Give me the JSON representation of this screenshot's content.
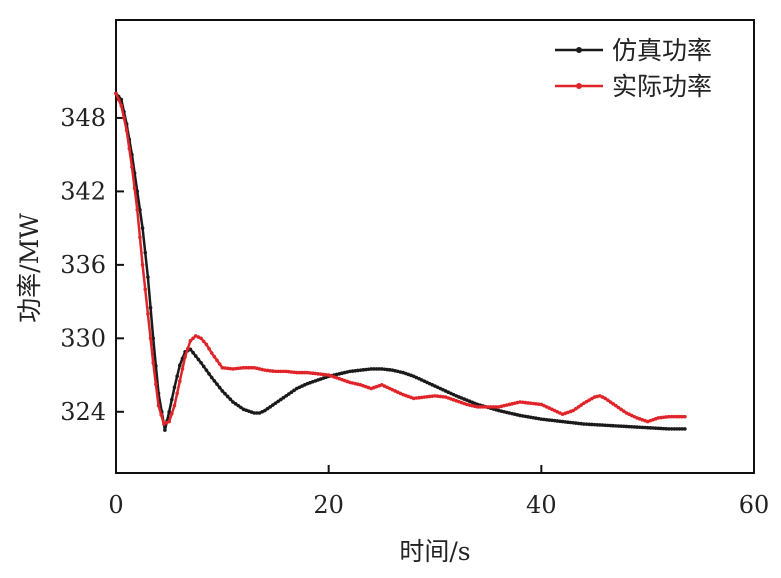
{
  "chart_data": {
    "type": "line",
    "xlabel": "时间/s",
    "ylabel": "功率/MW",
    "xlim": [
      0,
      60
    ],
    "ylim": [
      319,
      356
    ],
    "x_ticks": [
      "0",
      "20",
      "40",
      "60"
    ],
    "y_ticks": [
      "324",
      "330",
      "336",
      "342",
      "348"
    ],
    "grid": false,
    "legend_position": "top-right",
    "series": [
      {
        "name": "仿真功率",
        "color": "#1a1a1a",
        "x": [
          0,
          0.5,
          1,
          1.5,
          2,
          2.5,
          3,
          3.5,
          4,
          4.6,
          5,
          5.5,
          6,
          6.5,
          7,
          8,
          9,
          10,
          11,
          12,
          13,
          13.5,
          14,
          15,
          16,
          17,
          18,
          19,
          20,
          21,
          22,
          23,
          24,
          25,
          26,
          27,
          28,
          30,
          32,
          34,
          36,
          38,
          40,
          42,
          44,
          46,
          48,
          50,
          52,
          53.5
        ],
        "y": [
          350,
          349.5,
          347.5,
          345,
          342,
          339,
          335,
          330,
          325.5,
          322.5,
          324,
          326,
          327.8,
          328.9,
          329.1,
          328,
          326.8,
          325.7,
          324.8,
          324.2,
          323.9,
          323.9,
          324.1,
          324.7,
          325.3,
          325.9,
          326.3,
          326.6,
          326.9,
          327.1,
          327.3,
          327.4,
          327.5,
          327.5,
          327.4,
          327.2,
          326.9,
          326.1,
          325.3,
          324.6,
          324.1,
          323.7,
          323.4,
          323.2,
          323,
          322.9,
          322.8,
          322.7,
          322.6,
          322.6
        ]
      },
      {
        "name": "实际功率",
        "color": "#e0252a",
        "x": [
          0,
          0.5,
          1,
          1.5,
          2,
          2.5,
          3,
          3.5,
          4,
          4.5,
          5,
          5.5,
          6,
          6.5,
          7,
          7.5,
          8,
          8.5,
          9,
          10,
          11,
          12,
          13,
          14,
          15,
          16,
          17,
          18,
          19,
          20,
          21,
          22,
          23,
          24,
          25,
          26,
          27,
          28,
          29,
          30,
          31,
          32,
          33,
          34,
          35,
          36,
          37,
          38,
          39,
          40,
          41,
          42,
          43,
          44,
          45,
          45.5,
          46,
          47,
          48,
          49,
          50,
          51,
          52,
          53,
          53.5
        ],
        "y": [
          350,
          349,
          347,
          344,
          340.5,
          336,
          332,
          328,
          324.5,
          323,
          323.2,
          324.5,
          326.5,
          328.5,
          329.8,
          330.2,
          330,
          329.5,
          328.8,
          327.6,
          327.5,
          327.6,
          327.6,
          327.4,
          327.3,
          327.3,
          327.2,
          327.2,
          327.1,
          327,
          326.7,
          326.4,
          326.2,
          325.9,
          326.2,
          325.8,
          325.4,
          325.1,
          325.2,
          325.3,
          325.2,
          324.9,
          324.6,
          324.4,
          324.4,
          324.4,
          324.6,
          324.8,
          324.7,
          324.6,
          324.2,
          323.8,
          324.1,
          324.7,
          325.2,
          325.3,
          325.1,
          324.5,
          323.9,
          323.5,
          323.2,
          323.5,
          323.6,
          323.6,
          323.6
        ]
      }
    ]
  }
}
